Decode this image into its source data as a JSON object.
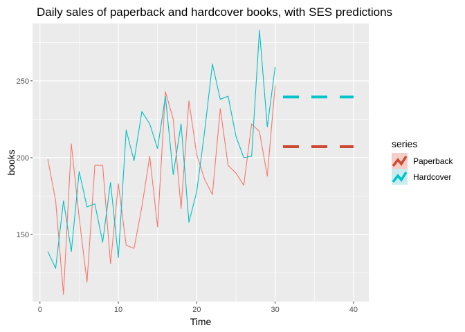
{
  "chart_data": {
    "type": "line",
    "title": "Daily sales of paperback and hardcover books, with SES predictions",
    "xlabel": "Time",
    "ylabel": "books",
    "xlim": [
      -0.95,
      41.95
    ],
    "ylim": [
      106.4,
      287.3
    ],
    "x_ticks": [
      0,
      10,
      20,
      30,
      40
    ],
    "y_ticks": [
      150,
      200,
      250
    ],
    "x_minor": [
      5,
      15,
      25,
      35
    ],
    "y_minor": [
      125,
      175,
      225,
      275
    ],
    "grid": true,
    "legend_position": "right",
    "legend": {
      "title": "series",
      "items": [
        "Paperback",
        "Hardcover"
      ]
    },
    "x": [
      1,
      2,
      3,
      4,
      5,
      6,
      7,
      8,
      9,
      10,
      11,
      12,
      13,
      14,
      15,
      16,
      17,
      18,
      19,
      20,
      21,
      22,
      23,
      24,
      25,
      26,
      27,
      28,
      29,
      30
    ],
    "series": [
      {
        "name": "Paperback",
        "color": "#f8766d",
        "values": [
          199,
          172,
          111,
          209,
          161,
          119,
          195,
          195,
          131,
          183,
          143,
          141,
          168,
          201,
          155,
          243,
          225,
          167,
          237,
          202,
          186,
          176,
          232,
          195,
          190,
          182,
          222,
          217,
          188,
          247
        ]
      },
      {
        "name": "Hardcover",
        "color": "#00bfc4",
        "values": [
          139,
          128,
          172,
          139,
          191,
          168,
          170,
          145,
          184,
          135,
          218,
          198,
          230,
          222,
          206,
          240,
          189,
          222,
          158,
          178,
          217,
          261,
          238,
          240,
          214,
          200,
          201,
          283,
          220,
          259
        ]
      }
    ],
    "forecasts": [
      {
        "name": "Paperback",
        "color": "#cc4c33",
        "x_range": [
          31,
          40
        ],
        "value": 207.2
      },
      {
        "name": "Hardcover",
        "color": "#00c4c8",
        "x_range": [
          31,
          40
        ],
        "value": 239.5
      }
    ]
  }
}
